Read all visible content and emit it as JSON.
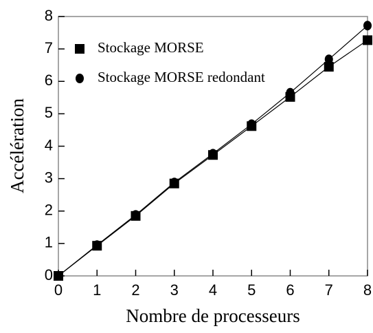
{
  "chart_data": {
    "type": "line",
    "x": [
      0,
      1,
      2,
      3,
      4,
      5,
      6,
      7,
      8
    ],
    "series": [
      {
        "name": "Stockage MORSE",
        "marker": "square",
        "color": "#000000",
        "values": [
          0,
          0.93,
          1.85,
          2.85,
          3.73,
          4.62,
          5.52,
          6.45,
          7.27
        ]
      },
      {
        "name": "Stockage MORSE redondant",
        "marker": "circle",
        "color": "#000000",
        "values": [
          0,
          0.95,
          1.88,
          2.88,
          3.77,
          4.68,
          5.65,
          6.68,
          7.72
        ]
      }
    ],
    "xlabel": "Nombre de processeurs",
    "ylabel": "Accélération",
    "xlim": [
      0,
      8
    ],
    "xticks": [
      0,
      1,
      2,
      3,
      4,
      5,
      6,
      7,
      8
    ],
    "ylim": [
      0,
      8
    ],
    "yticks": [
      0,
      1,
      2,
      3,
      4,
      5,
      6,
      7,
      8
    ],
    "legend": "upper left"
  }
}
